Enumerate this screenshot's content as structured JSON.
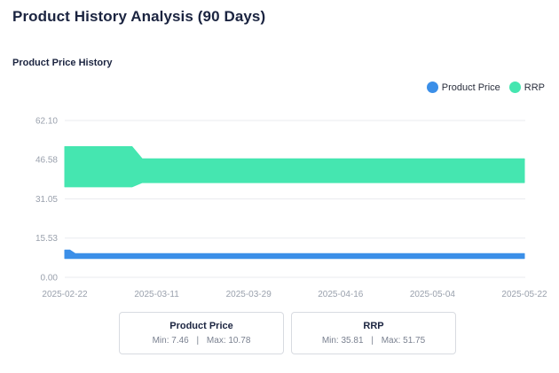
{
  "page": {
    "title": "Product History Analysis (90 Days)"
  },
  "chart_data": {
    "type": "area",
    "title": "Product Price History",
    "xlabel": "",
    "ylabel": "",
    "yticks": [
      "0.00",
      "15.53",
      "31.05",
      "46.58",
      "62.10"
    ],
    "ylim": [
      0,
      62.1
    ],
    "xticks": [
      "2025-02-22",
      "2025-03-11",
      "2025-03-29",
      "2025-04-16",
      "2025-05-04",
      "2025-05-22"
    ],
    "xlim": [
      "2025-02-22",
      "2025-05-22"
    ],
    "grid": true,
    "legend_position": "top-right",
    "series": [
      {
        "name": "Product Price",
        "color": "#3b8fe8",
        "band": [
          {
            "x": "2025-02-22",
            "low": 7.46,
            "high": 10.78
          },
          {
            "x": "2025-02-23",
            "low": 7.46,
            "high": 10.78
          },
          {
            "x": "2025-02-24",
            "low": 7.46,
            "high": 9.4
          },
          {
            "x": "2025-05-22",
            "low": 7.46,
            "high": 9.4
          }
        ]
      },
      {
        "name": "RRP",
        "color": "#45e6b0",
        "band": [
          {
            "x": "2025-02-22",
            "low": 35.81,
            "high": 51.75
          },
          {
            "x": "2025-03-07",
            "low": 35.81,
            "high": 51.75
          },
          {
            "x": "2025-03-09",
            "low": 37.5,
            "high": 46.9
          },
          {
            "x": "2025-05-22",
            "low": 37.5,
            "high": 46.9
          }
        ]
      }
    ]
  },
  "stats": [
    {
      "title": "Product Price",
      "min_label": "Min:",
      "min": "7.46",
      "sep": "|",
      "max_label": "Max:",
      "max": "10.78"
    },
    {
      "title": "RRP",
      "min_label": "Min:",
      "min": "35.81",
      "sep": "|",
      "max_label": "Max:",
      "max": "51.75"
    }
  ]
}
